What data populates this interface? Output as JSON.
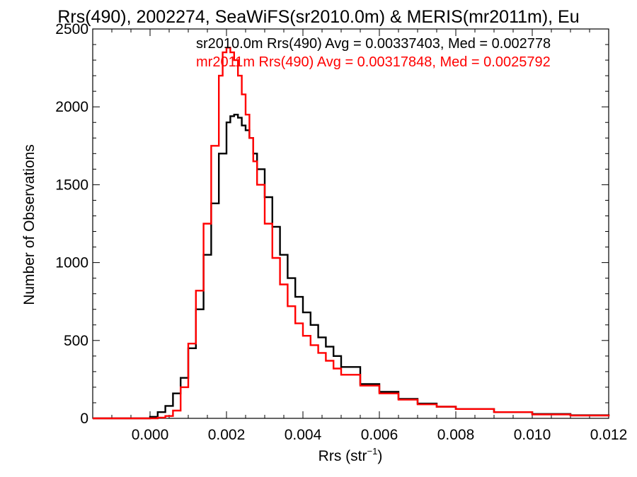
{
  "chart_data": {
    "type": "line",
    "title": "Rrs(490), 2002274, SeaWiFS(sr2010.0m) & MERIS(mr2011m), Eu",
    "xlabel_main": "Rrs (str",
    "xlabel_sup": "−1",
    "xlabel_close": ")",
    "ylabel": "Number of Observations",
    "xlim": [
      -0.0015,
      0.012
    ],
    "ylim": [
      0,
      2500
    ],
    "xticks": [
      0.0,
      0.002,
      0.004,
      0.006,
      0.008,
      0.01,
      0.012
    ],
    "xtick_labels": [
      "0.000",
      "0.002",
      "0.004",
      "0.006",
      "0.008",
      "0.010",
      "0.012"
    ],
    "yticks": [
      0,
      500,
      1000,
      1500,
      2000,
      2500
    ],
    "ytick_labels": [
      "0",
      "500",
      "1000",
      "1500",
      "2000",
      "2500"
    ],
    "grid": false,
    "stats": [
      {
        "text": "sr2010.0m Rrs(490) Avg = 0.00337403, Med = 0.002778",
        "color": "#000000"
      },
      {
        "text": "mr2011m Rrs(490) Avg = 0.00317848, Med = 0.0025792",
        "color": "#ff0000"
      }
    ],
    "series": [
      {
        "color": "#000000",
        "x": [
          -0.0015,
          -0.001,
          -0.0005,
          0.0,
          0.0002,
          0.0004,
          0.0006,
          0.0008,
          0.001,
          0.0012,
          0.0014,
          0.0016,
          0.0018,
          0.002,
          0.0021,
          0.0022,
          0.0023,
          0.0024,
          0.0025,
          0.0026,
          0.0027,
          0.0028,
          0.003,
          0.0032,
          0.0034,
          0.0036,
          0.0038,
          0.004,
          0.0042,
          0.0044,
          0.0046,
          0.0048,
          0.005,
          0.0055,
          0.006,
          0.0065,
          0.007,
          0.0075,
          0.008,
          0.009,
          0.01,
          0.011,
          0.012
        ],
        "y": [
          0,
          0,
          0,
          10,
          40,
          80,
          160,
          260,
          450,
          700,
          1050,
          1380,
          1700,
          1900,
          1940,
          1950,
          1930,
          1880,
          1850,
          1800,
          1700,
          1600,
          1420,
          1230,
          1050,
          900,
          780,
          680,
          600,
          520,
          460,
          400,
          330,
          220,
          170,
          125,
          95,
          75,
          60,
          40,
          28,
          20,
          15
        ]
      },
      {
        "color": "#ff0000",
        "x": [
          -0.0015,
          -0.001,
          -0.0005,
          0.0,
          0.0002,
          0.0004,
          0.0006,
          0.0008,
          0.001,
          0.0012,
          0.0014,
          0.0016,
          0.0018,
          0.0019,
          0.002,
          0.0021,
          0.0022,
          0.0023,
          0.0024,
          0.0025,
          0.0026,
          0.0027,
          0.0028,
          0.003,
          0.0032,
          0.0034,
          0.0036,
          0.0038,
          0.004,
          0.0042,
          0.0044,
          0.0046,
          0.0048,
          0.005,
          0.0055,
          0.006,
          0.0065,
          0.007,
          0.0075,
          0.008,
          0.009,
          0.01,
          0.011,
          0.012
        ],
        "y": [
          0,
          0,
          0,
          0,
          5,
          15,
          50,
          200,
          480,
          820,
          1250,
          1750,
          2200,
          2350,
          2380,
          2350,
          2300,
          2200,
          2080,
          1950,
          1800,
          1650,
          1500,
          1250,
          1030,
          860,
          720,
          610,
          530,
          470,
          420,
          370,
          320,
          280,
          210,
          160,
          120,
          90,
          75,
          60,
          40,
          25,
          18,
          12
        ]
      }
    ]
  }
}
